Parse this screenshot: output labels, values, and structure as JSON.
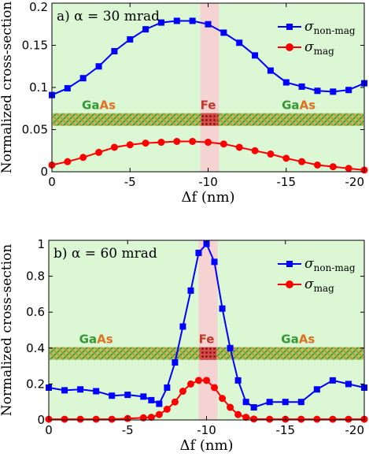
{
  "chart_data": [
    {
      "type": "line",
      "title": "a) α = 30 mrad",
      "xlabel": "Δf (nm)",
      "ylabel": "Normalized cross-section",
      "xlim": [
        0,
        -20
      ],
      "ylim": [
        0,
        0.2
      ],
      "xticks": [
        "0",
        "-5",
        "-10",
        "-15",
        "-20"
      ],
      "yticks": [
        "0",
        "0.05",
        "0.1",
        "0.15",
        "0.2"
      ],
      "x": [
        0,
        -1,
        -2,
        -3,
        -4,
        -5,
        -6,
        -7,
        -8,
        -9,
        -10,
        -11,
        -12,
        -13,
        -14,
        -15,
        -16,
        -17,
        -18,
        -19,
        -20
      ],
      "series": [
        {
          "name": "σnon-mag",
          "name_main": "σ",
          "name_sub": "non-mag",
          "color": "#0000ff",
          "marker": "square",
          "values": [
            0.091,
            0.099,
            0.111,
            0.125,
            0.143,
            0.157,
            0.169,
            0.177,
            0.179,
            0.179,
            0.175,
            0.165,
            0.153,
            0.138,
            0.12,
            0.106,
            0.101,
            0.096,
            0.095,
            0.097,
            0.105
          ]
        },
        {
          "name": "σmag",
          "name_main": "σ",
          "name_sub": "mag",
          "color": "#ff0000",
          "marker": "circle",
          "values": [
            0.008,
            0.012,
            0.017,
            0.023,
            0.029,
            0.032,
            0.034,
            0.035,
            0.036,
            0.036,
            0.035,
            0.033,
            0.029,
            0.025,
            0.021,
            0.016,
            0.012,
            0.008,
            0.006,
            0.004,
            0.002
          ]
        }
      ],
      "legend": "top-right",
      "regions": [
        {
          "label_parts": [
            {
              "text": "Ga",
              "color": "#339933"
            },
            {
              "text": "As",
              "color": "#e07020"
            }
          ],
          "x": -3
        },
        {
          "label_parts": [
            {
              "text": "Fe",
              "color": "#c0392b"
            }
          ],
          "x": -10
        },
        {
          "label_parts": [
            {
              "text": "Ga",
              "color": "#339933"
            },
            {
              "text": "As",
              "color": "#e07020"
            }
          ],
          "x": -15.8
        }
      ],
      "fe_band": [
        -9.5,
        -10.7
      ],
      "structure_y": 0.062
    },
    {
      "type": "line",
      "title": "b) α = 60 mrad",
      "xlabel": "Δf (nm)",
      "ylabel": "Normalized cross-section",
      "xlim": [
        0,
        -20
      ],
      "ylim": [
        0,
        1
      ],
      "xticks": [
        "0",
        "-5",
        "-10",
        "-15",
        "-20"
      ],
      "yticks": [
        "0",
        "0.2",
        "0.4",
        "0.6",
        "0.8",
        "1"
      ],
      "x": [
        0,
        -1,
        -2,
        -3,
        -4,
        -5,
        -6,
        -6.5,
        -7,
        -7.5,
        -8,
        -8.5,
        -9,
        -9.5,
        -10,
        -10.5,
        -11,
        -11.5,
        -12,
        -12.5,
        -13,
        -14,
        -15,
        -16,
        -17,
        -18,
        -19,
        -20
      ],
      "series": [
        {
          "name": "σnon-mag",
          "name_main": "σ",
          "name_sub": "non-mag",
          "color": "#0000ff",
          "marker": "square",
          "values": [
            0.18,
            0.165,
            0.17,
            0.16,
            0.135,
            0.14,
            0.13,
            0.11,
            0.09,
            0.18,
            0.32,
            0.52,
            0.72,
            0.93,
            0.98,
            0.88,
            0.62,
            0.4,
            0.22,
            0.1,
            0.07,
            0.1,
            0.1,
            0.1,
            0.17,
            0.22,
            0.2,
            0.18
          ]
        },
        {
          "name": "σmag",
          "name_main": "σ",
          "name_sub": "mag",
          "color": "#ff0000",
          "marker": "circle",
          "values": [
            0.004,
            0.004,
            0.004,
            0.004,
            0.004,
            0.008,
            0.012,
            0.015,
            0.03,
            0.06,
            0.1,
            0.16,
            0.2,
            0.22,
            0.22,
            0.18,
            0.12,
            0.07,
            0.03,
            0.015,
            0.005,
            0.004,
            0.004,
            0.004,
            0.004,
            0.004,
            0.004,
            0.004
          ]
        }
      ],
      "legend": "top-right",
      "regions": [
        {
          "label_parts": [
            {
              "text": "Ga",
              "color": "#339933"
            },
            {
              "text": "As",
              "color": "#e07020"
            }
          ],
          "x": -3
        },
        {
          "label_parts": [
            {
              "text": "Fe",
              "color": "#c0392b"
            }
          ],
          "x": -10
        },
        {
          "label_parts": [
            {
              "text": "Ga",
              "color": "#339933"
            },
            {
              "text": "As",
              "color": "#e07020"
            }
          ],
          "x": -15.8
        }
      ],
      "fe_band": [
        -9.5,
        -10.7
      ],
      "structure_y": 0.37
    }
  ]
}
